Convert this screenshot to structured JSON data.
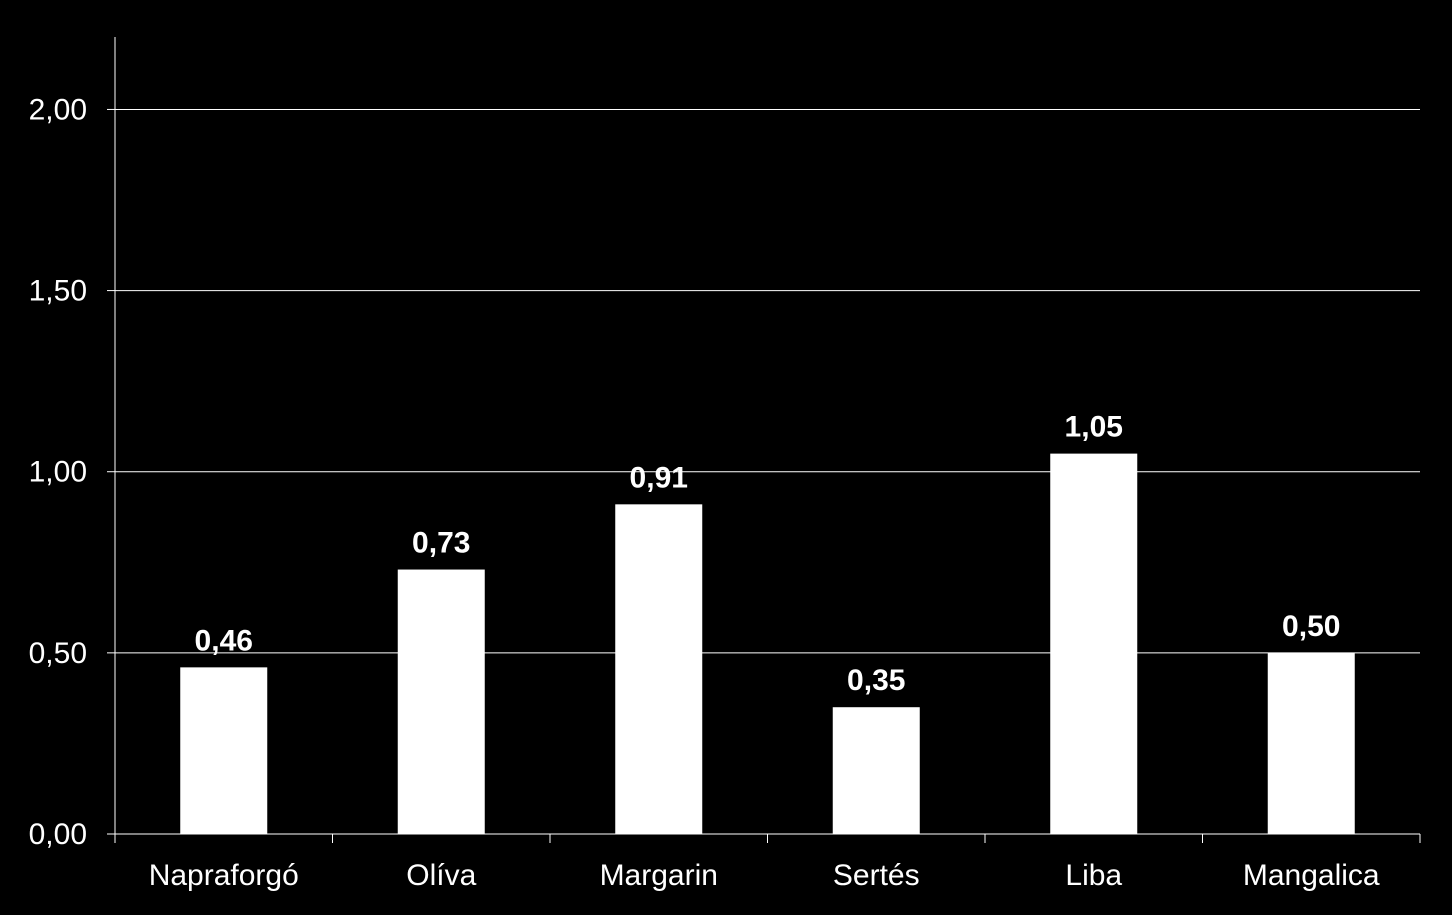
{
  "chart_data": {
    "type": "bar",
    "categories": [
      "Napraforgó",
      "Olíva",
      "Margarin",
      "Sertés",
      "Liba",
      "Mangalica"
    ],
    "values": [
      0.46,
      0.73,
      0.91,
      0.35,
      1.05,
      0.5
    ],
    "value_labels": [
      "0,46",
      "0,73",
      "0,91",
      "0,35",
      "1,05",
      "0,50"
    ],
    "y_ticks": [
      0,
      0.5,
      1,
      1.5,
      2
    ],
    "y_tick_labels": [
      "0,00",
      "0,50",
      "1,00",
      "1,50",
      "2,00"
    ],
    "ylim": [
      0,
      2.2
    ],
    "title": "",
    "xlabel": "",
    "ylabel": "",
    "grid": true,
    "legend": "none",
    "colors": {
      "background": "#000000",
      "bar": "#ffffff",
      "text": "#ffffff",
      "grid": "#ffffff",
      "axis": "#ffffff"
    }
  }
}
